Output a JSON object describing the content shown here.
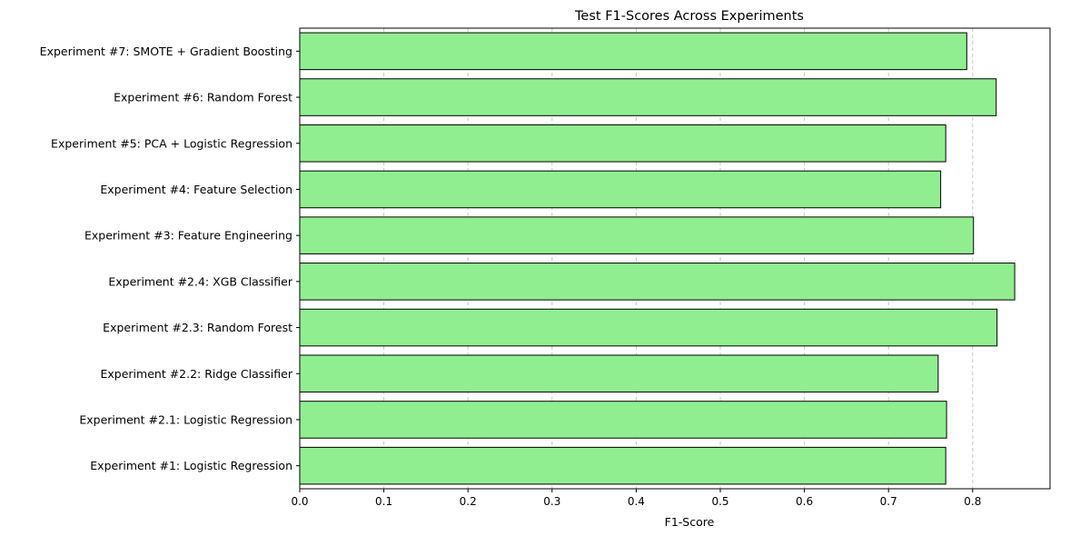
{
  "chart_data": {
    "type": "bar",
    "orientation": "horizontal",
    "title": "Test F1-Scores Across Experiments",
    "xlabel": "F1-Score",
    "ylabel": "",
    "xlim": [
      0,
      0.892
    ],
    "xticks": [
      0.0,
      0.1,
      0.2,
      0.3,
      0.4,
      0.5,
      0.6,
      0.7,
      0.8
    ],
    "xtick_labels": [
      "0.0",
      "0.1",
      "0.2",
      "0.3",
      "0.4",
      "0.5",
      "0.6",
      "0.7",
      "0.8"
    ],
    "grid": "x, dashed",
    "bar_color": "#90ee90",
    "edge_color": "#000000",
    "categories": [
      "Experiment #1: Logistic Regression",
      "Experiment #2.1: Logistic Regression",
      "Experiment #2.2: Ridge Classifier",
      "Experiment #2.3: Random Forest",
      "Experiment #2.4: XGB Classifier",
      "Experiment #3: Feature Engineering",
      "Experiment #4: Feature Selection",
      "Experiment #5: PCA + Logistic Regression",
      "Experiment #6: Random Forest",
      "Experiment #7: SMOTE + Gradient Boosting"
    ],
    "values": [
      0.768,
      0.769,
      0.759,
      0.829,
      0.85,
      0.801,
      0.762,
      0.768,
      0.828,
      0.793
    ]
  }
}
